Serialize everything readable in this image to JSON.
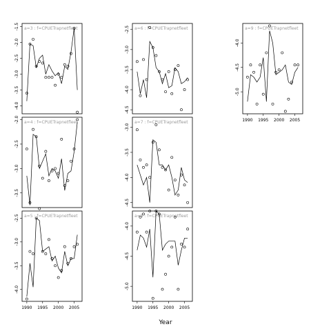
{
  "chart_data": {
    "type": "line",
    "xlabel": "Year",
    "x_ticks": [
      1990,
      1995,
      2000,
      2005
    ],
    "xlim": [
      1988.5,
      2007.5
    ],
    "panels": [
      {
        "label": "a=3 : f=CPUETrapnetfleet",
        "ylim": [
          -4.25,
          -1.4
        ],
        "yticks": [
          -1.5,
          -2.0,
          -2.5,
          -3.0,
          -3.5,
          -4.0
        ],
        "points": {
          "x": [
            1990,
            1991,
            1992,
            1993,
            1994,
            1995,
            1996,
            1997,
            1998,
            1999,
            2000,
            2001,
            2002,
            2003,
            2004,
            2005,
            2006
          ],
          "y": [
            -3.6,
            -2.05,
            -1.9,
            -2.75,
            -2.6,
            -2.65,
            -3.1,
            -3.1,
            -3.1,
            -3.35,
            -3.0,
            -3.1,
            -2.7,
            -2.75,
            -2.35,
            -1.55,
            -4.2
          ]
        },
        "fit": {
          "x": [
            1990,
            1991,
            1992,
            1993,
            1994,
            1995,
            1996,
            1997,
            1998,
            1999,
            2000,
            2001,
            2002,
            2003,
            2004,
            2005,
            2006
          ],
          "y": [
            -3.85,
            -2.05,
            -2.1,
            -2.8,
            -2.5,
            -2.4,
            -3.0,
            -2.7,
            -2.9,
            -3.05,
            -2.95,
            -3.3,
            -2.75,
            -2.85,
            -2.3,
            -1.55,
            -3.5
          ]
        }
      },
      {
        "label": "a=4 : f=CPUETrapnetfleet",
        "ylim": [
          -3.8,
          -1.95
        ],
        "yticks": [
          -2.0,
          -2.5,
          -3.0,
          -3.5
        ],
        "points": {
          "x": [
            1990,
            1991,
            1992,
            1993,
            1994,
            1995,
            1996,
            1997,
            1998,
            1999,
            2000,
            2001,
            2002,
            2003,
            2004,
            2005,
            2006
          ],
          "y": [
            -2.6,
            -3.7,
            -2.2,
            -2.35,
            -2.95,
            -3.2,
            -2.65,
            -3.25,
            -3.05,
            -3.0,
            -3.1,
            -2.4,
            -3.35,
            -3.25,
            -2.85,
            -2.6,
            -2.0
          ]
        },
        "fit": {
          "x": [
            1990,
            1991,
            1992,
            1993,
            1994,
            1995,
            1996,
            1997,
            1998,
            1999,
            2000,
            2001,
            2002,
            2003,
            2004,
            2005,
            2006
          ],
          "y": [
            -3.15,
            -3.75,
            -2.3,
            -2.35,
            -3.0,
            -2.85,
            -2.7,
            -3.15,
            -3.0,
            -3.05,
            -3.2,
            -2.8,
            -3.45,
            -3.1,
            -3.05,
            -2.65,
            -2.05
          ]
        }
      },
      {
        "label": "a=5 : f=CPUETrapnetfleet",
        "ylim": [
          -4.25,
          -2.35
        ],
        "yticks": [
          -2.5,
          -3.0,
          -3.5,
          -4.0
        ],
        "points": {
          "x": [
            1990,
            1991,
            1992,
            1993,
            1994,
            1995,
            1996,
            1997,
            1998,
            1999,
            2000,
            2001,
            2002,
            2003,
            2004,
            2005,
            2006
          ],
          "y": [
            -4.2,
            -3.2,
            -3.25,
            -2.5,
            -2.3,
            -3.2,
            -3.25,
            -2.95,
            -3.35,
            -3.5,
            -3.75,
            -3.6,
            -3.1,
            -3.45,
            -3.35,
            -3.1,
            -3.05
          ]
        },
        "fit": {
          "x": [
            1990,
            1991,
            1992,
            1993,
            1994,
            1995,
            1996,
            1997,
            1998,
            1999,
            2000,
            2001,
            2002,
            2003,
            2004,
            2005,
            2006
          ],
          "y": [
            -4.15,
            -3.45,
            -3.95,
            -2.5,
            -2.55,
            -3.2,
            -3.15,
            -3.1,
            -3.4,
            -3.3,
            -3.55,
            -3.65,
            -3.2,
            -3.5,
            -3.35,
            -3.35,
            -2.85
          ]
        }
      },
      {
        "label": "a=6 : f=CPUETrapnetfleet",
        "ylim": [
          -4.6,
          -2.35
        ],
        "yticks": [
          -2.5,
          -3.0,
          -3.5,
          -4.0,
          -4.5
        ],
        "points": {
          "x": [
            1990,
            1991,
            1992,
            1993,
            1994,
            1995,
            1996,
            1997,
            1998,
            1999,
            2000,
            2001,
            2002,
            2003,
            2004,
            2005,
            2006
          ],
          "y": [
            -3.3,
            -4.15,
            -3.25,
            -3.75,
            -2.45,
            -2.95,
            -3.15,
            -3.55,
            -3.75,
            -4.05,
            -3.55,
            -4.1,
            -3.5,
            -3.4,
            -4.5,
            -4.0,
            -3.75
          ]
        },
        "fit": {
          "x": [
            1990,
            1991,
            1992,
            1993,
            1994,
            1995,
            1996,
            1997,
            1998,
            1999,
            2000,
            2001,
            2002,
            2003,
            2004,
            2005,
            2006
          ],
          "y": [
            -3.55,
            -4.1,
            -3.75,
            -4.2,
            -2.8,
            -2.95,
            -3.45,
            -3.55,
            -3.85,
            -3.6,
            -3.95,
            -3.9,
            -3.45,
            -3.55,
            -3.85,
            -3.8,
            -3.7
          ]
        }
      },
      {
        "label": "a=7 : f=CPUETrapnetfleet",
        "ylim": [
          -4.6,
          -2.8
        ],
        "yticks": [
          -3.0,
          -3.5,
          -4.0,
          -4.5
        ],
        "points": {
          "x": [
            1990,
            1991,
            1992,
            1993,
            1994,
            1995,
            1996,
            1997,
            1998,
            1999,
            2000,
            2001,
            2002,
            2003,
            2004,
            2005,
            2006
          ],
          "y": [
            -3.05,
            -3.65,
            -3.8,
            -3.75,
            -4.0,
            -3.3,
            -2.95,
            -3.45,
            -3.8,
            -3.85,
            -4.25,
            -3.6,
            -4.05,
            -4.35,
            -3.95,
            -4.15,
            -4.5
          ]
        },
        "fit": {
          "x": [
            1990,
            1991,
            1992,
            1993,
            1994,
            1995,
            1996,
            1997,
            1998,
            1999,
            2000,
            2001,
            2002,
            2003,
            2004,
            2005,
            2006
          ],
          "y": [
            -3.75,
            -3.95,
            -4.15,
            -4.0,
            -4.5,
            -3.25,
            -3.3,
            -3.75,
            -3.75,
            -3.85,
            -3.75,
            -4.0,
            -4.35,
            -4.25,
            -3.8,
            -4.05,
            -4.1
          ]
        }
      },
      {
        "label": "a=8 : f=CPUETrapnetfleet",
        "ylim": [
          -5.25,
          -3.75
        ],
        "yticks": [
          -4.0,
          -4.5,
          -5.0
        ],
        "points": {
          "x": [
            1990,
            1991,
            1992,
            1993,
            1994,
            1995,
            1996,
            1997,
            1998,
            1999,
            2000,
            2001,
            2002,
            2003,
            2004,
            2005,
            2006
          ],
          "y": [
            -4.1,
            -3.85,
            -3.8,
            -4.1,
            -3.75,
            -5.2,
            -3.75,
            -3.8,
            -5.05,
            -4.8,
            -4.5,
            -4.35,
            -3.85,
            -5.05,
            -4.3,
            -4.35,
            -4.05
          ]
        },
        "fit": {
          "x": [
            1990,
            1991,
            1992,
            1993,
            1994,
            1995,
            1996,
            1997,
            1998,
            1999,
            2000,
            2001,
            2002,
            2003,
            2004,
            2005,
            2006
          ],
          "y": [
            -4.4,
            -4.15,
            -4.2,
            -4.35,
            -4.05,
            -4.85,
            -3.75,
            -3.8,
            -4.4,
            -4.3,
            -4.25,
            -4.25,
            -4.25,
            -4.65,
            -4.4,
            -4.2,
            -4.2
          ]
        }
      },
      {
        "label": "a=9 : f=CPUETrapnetfleet",
        "ylim": [
          -5.45,
          -3.6
        ],
        "yticks": [
          -4.0,
          -4.5,
          -5.0
        ],
        "points": {
          "x": [
            1990,
            1991,
            1992,
            1993,
            1994,
            1995,
            1996,
            1997,
            1998,
            1999,
            2000,
            2001,
            2002,
            2003,
            2004,
            2005,
            2006
          ],
          "y": [
            -4.7,
            -4.45,
            -4.6,
            -5.25,
            -4.45,
            -5.05,
            -4.2,
            -3.65,
            -5.25,
            -4.6,
            -4.55,
            -4.2,
            -5.4,
            -5.15,
            -4.8,
            -4.45,
            -4.45
          ]
        },
        "fit": {
          "x": [
            1990,
            1991,
            1992,
            1993,
            1994,
            1995,
            1996,
            1997,
            1998,
            1999,
            2000,
            2001,
            2002,
            2003,
            2004,
            2005,
            2006
          ],
          "y": [
            -5.2,
            -4.65,
            -4.7,
            -4.8,
            -4.7,
            -4.3,
            -5.2,
            -3.75,
            -4.0,
            -4.65,
            -4.6,
            -4.55,
            -4.45,
            -4.8,
            -4.85,
            -4.6,
            -4.5
          ]
        }
      }
    ]
  }
}
